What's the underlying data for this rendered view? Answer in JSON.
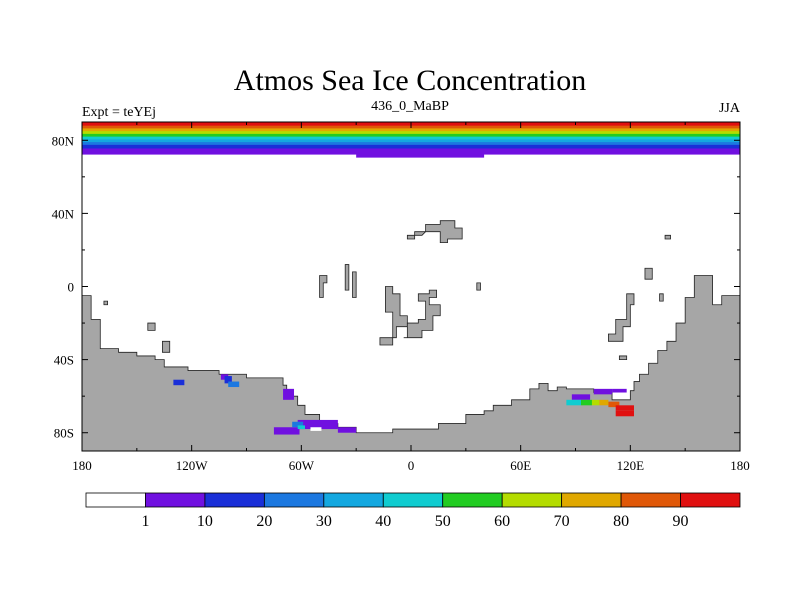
{
  "chart_data": {
    "type": "heatmap",
    "title": "Atmos Sea Ice Concentration",
    "subtitle": "436_0_MaBP",
    "left_label": "Expt = teYEj",
    "right_label": "JJA",
    "projection": "cylindrical equidistant",
    "xlim": [
      -180,
      180
    ],
    "ylim": [
      -90,
      90
    ],
    "x_ticks": [
      {
        "value": -180,
        "label": "180"
      },
      {
        "value": -120,
        "label": "120W"
      },
      {
        "value": -60,
        "label": "60W"
      },
      {
        "value": 0,
        "label": "0"
      },
      {
        "value": 60,
        "label": "60E"
      },
      {
        "value": 120,
        "label": "120E"
      },
      {
        "value": 180,
        "label": "180"
      }
    ],
    "y_ticks": [
      {
        "value": 80,
        "label": "80N"
      },
      {
        "value": 40,
        "label": "40N"
      },
      {
        "value": 0,
        "label": "0"
      },
      {
        "value": -40,
        "label": "40S"
      },
      {
        "value": -80,
        "label": "80S"
      }
    ],
    "colorbar": {
      "levels": [
        1,
        10,
        20,
        30,
        40,
        50,
        60,
        70,
        80,
        90
      ],
      "level_labels": [
        "1",
        "10",
        "20",
        "30",
        "40",
        "50",
        "60",
        "70",
        "80",
        "90"
      ],
      "colors": [
        "#ffffff",
        "#7010e0",
        "#1a2fd8",
        "#1c78e0",
        "#14a8e0",
        "#10ccd0",
        "#22cc22",
        "#b4dc00",
        "#e0a800",
        "#e05808",
        "#e01010"
      ]
    },
    "land_color": "#a6a6a6",
    "arctic_bands": [
      {
        "lat_top": 90,
        "lat_bottom": 88,
        "color": "#e01010"
      },
      {
        "lat_top": 88,
        "lat_bottom": 86.5,
        "color": "#e05808"
      },
      {
        "lat_top": 86.5,
        "lat_bottom": 85,
        "color": "#e0a800"
      },
      {
        "lat_top": 85,
        "lat_bottom": 83.5,
        "color": "#b4dc00"
      },
      {
        "lat_top": 83.5,
        "lat_bottom": 82,
        "color": "#22cc22"
      },
      {
        "lat_top": 82,
        "lat_bottom": 80.5,
        "color": "#10ccd0"
      },
      {
        "lat_top": 80.5,
        "lat_bottom": 79,
        "color": "#14a8e0"
      },
      {
        "lat_top": 79,
        "lat_bottom": 77.5,
        "color": "#1c78e0"
      },
      {
        "lat_top": 77.5,
        "lat_bottom": 75.5,
        "color": "#1a2fd8"
      },
      {
        "lat_top": 75.5,
        "lat_bottom": 72.5,
        "color": "#7010e0"
      }
    ],
    "land_polygons": [
      {
        "name": "antarctica-and-south-america",
        "points": [
          [
            -180,
            -90
          ],
          [
            180,
            -90
          ],
          [
            180,
            -5
          ],
          [
            170,
            -5
          ],
          [
            170,
            -10
          ],
          [
            165,
            -10
          ],
          [
            165,
            6
          ],
          [
            155,
            6
          ],
          [
            155,
            -6
          ],
          [
            150,
            -6
          ],
          [
            150,
            -20
          ],
          [
            145,
            -20
          ],
          [
            145,
            -30
          ],
          [
            140,
            -30
          ],
          [
            140,
            -35
          ],
          [
            135,
            -35
          ],
          [
            135,
            -42
          ],
          [
            130,
            -42
          ],
          [
            130,
            -48
          ],
          [
            125,
            -48
          ],
          [
            125,
            -52
          ],
          [
            122,
            -52
          ],
          [
            122,
            -57
          ],
          [
            120,
            -57
          ],
          [
            120,
            -62
          ],
          [
            110,
            -62
          ],
          [
            110,
            -58
          ],
          [
            100,
            -58
          ],
          [
            100,
            -56
          ],
          [
            85,
            -56
          ],
          [
            85,
            -55
          ],
          [
            80,
            -55
          ],
          [
            80,
            -57
          ],
          [
            75,
            -57
          ],
          [
            75,
            -53
          ],
          [
            70,
            -53
          ],
          [
            70,
            -56
          ],
          [
            65,
            -56
          ],
          [
            65,
            -62
          ],
          [
            55,
            -62
          ],
          [
            55,
            -65
          ],
          [
            45,
            -65
          ],
          [
            45,
            -68
          ],
          [
            40,
            -68
          ],
          [
            40,
            -70
          ],
          [
            30,
            -70
          ],
          [
            30,
            -75
          ],
          [
            15,
            -75
          ],
          [
            15,
            -78
          ],
          [
            -10,
            -78
          ],
          [
            -10,
            -80
          ],
          [
            -30,
            -80
          ],
          [
            -30,
            -77
          ],
          [
            -40,
            -77
          ],
          [
            -40,
            -75
          ],
          [
            -50,
            -75
          ],
          [
            -50,
            -70
          ],
          [
            -58,
            -70
          ],
          [
            -58,
            -65
          ],
          [
            -62,
            -65
          ],
          [
            -62,
            -60
          ],
          [
            -68,
            -60
          ],
          [
            -68,
            -54
          ],
          [
            -70,
            -54
          ],
          [
            -70,
            -50
          ],
          [
            -90,
            -50
          ],
          [
            -90,
            -48
          ],
          [
            -105,
            -48
          ],
          [
            -105,
            -46
          ],
          [
            -122,
            -46
          ],
          [
            -122,
            -44
          ],
          [
            -135,
            -44
          ],
          [
            -135,
            -40
          ],
          [
            -140,
            -40
          ],
          [
            -140,
            -38
          ],
          [
            -150,
            -38
          ],
          [
            -150,
            -36
          ],
          [
            -160,
            -36
          ],
          [
            -160,
            -34
          ],
          [
            -170,
            -34
          ],
          [
            -170,
            -18
          ],
          [
            -175,
            -18
          ],
          [
            -175,
            -5
          ],
          [
            -180,
            -5
          ]
        ]
      },
      {
        "name": "north-atlantic-island",
        "points": [
          [
            -2,
            26
          ],
          [
            2,
            26
          ],
          [
            2,
            30
          ],
          [
            8,
            30
          ],
          [
            8,
            34
          ],
          [
            16,
            34
          ],
          [
            16,
            36
          ],
          [
            24,
            36
          ],
          [
            24,
            32
          ],
          [
            28,
            32
          ],
          [
            28,
            26
          ],
          [
            20,
            26
          ],
          [
            20,
            24
          ],
          [
            16,
            24
          ],
          [
            16,
            30
          ],
          [
            8,
            30
          ],
          [
            6,
            28
          ],
          [
            -2,
            28
          ]
        ]
      },
      {
        "name": "tropical-island-c",
        "points": [
          [
            -17,
            -32
          ],
          [
            -10,
            -32
          ],
          [
            -10,
            -14
          ],
          [
            -14,
            -14
          ],
          [
            -14,
            0
          ],
          [
            -10,
            0
          ],
          [
            -10,
            -4
          ],
          [
            -6,
            -4
          ],
          [
            -6,
            -16
          ],
          [
            -2,
            -16
          ],
          [
            -2,
            -22
          ],
          [
            -8,
            -22
          ],
          [
            -8,
            -28
          ],
          [
            -17,
            -28
          ]
        ]
      },
      {
        "name": "tropical-island-s",
        "points": [
          [
            -4,
            -28
          ],
          [
            -2,
            -28
          ],
          [
            -2,
            -20
          ],
          [
            4,
            -20
          ],
          [
            4,
            -18
          ],
          [
            8,
            -18
          ],
          [
            8,
            -8
          ],
          [
            4,
            -8
          ],
          [
            4,
            -4
          ],
          [
            10,
            -4
          ],
          [
            10,
            -2
          ],
          [
            14,
            -2
          ],
          [
            14,
            -6
          ],
          [
            10,
            -6
          ],
          [
            10,
            -10
          ],
          [
            16,
            -10
          ],
          [
            16,
            -16
          ],
          [
            12,
            -16
          ],
          [
            12,
            -24
          ],
          [
            6,
            -24
          ],
          [
            6,
            -28
          ]
        ]
      },
      {
        "name": "small-tropical-island",
        "points": [
          [
            -50,
            6
          ],
          [
            -46,
            6
          ],
          [
            -46,
            2
          ],
          [
            -48,
            2
          ],
          [
            -48,
            -6
          ],
          [
            -50,
            -6
          ]
        ]
      },
      {
        "name": "small-island-2",
        "points": [
          [
            -36,
            12
          ],
          [
            -34,
            12
          ],
          [
            -34,
            -2
          ],
          [
            -36,
            -2
          ]
        ]
      },
      {
        "name": "small-island-3",
        "points": [
          [
            -32,
            8
          ],
          [
            -30,
            8
          ],
          [
            -30,
            -6
          ],
          [
            -32,
            -6
          ]
        ]
      },
      {
        "name": "small-island-4",
        "points": [
          [
            36,
            2
          ],
          [
            38,
            2
          ],
          [
            38,
            -2
          ],
          [
            36,
            -2
          ]
        ]
      },
      {
        "name": "small-island-5",
        "points": [
          [
            -168,
            -8
          ],
          [
            -166,
            -8
          ],
          [
            -166,
            -10
          ],
          [
            -168,
            -10
          ]
        ]
      },
      {
        "name": "small-island-6",
        "points": [
          [
            -144,
            -20
          ],
          [
            -140,
            -20
          ],
          [
            -140,
            -24
          ],
          [
            -144,
            -24
          ]
        ]
      },
      {
        "name": "small-island-7",
        "points": [
          [
            -136,
            -30
          ],
          [
            -132,
            -30
          ],
          [
            -132,
            -36
          ],
          [
            -136,
            -36
          ]
        ]
      },
      {
        "name": "pacific-island-chain",
        "points": [
          [
            108,
            -30
          ],
          [
            116,
            -30
          ],
          [
            116,
            -22
          ],
          [
            120,
            -22
          ],
          [
            120,
            -10
          ],
          [
            122,
            -10
          ],
          [
            122,
            -4
          ],
          [
            118,
            -4
          ],
          [
            118,
            -18
          ],
          [
            112,
            -18
          ],
          [
            112,
            -26
          ],
          [
            108,
            -26
          ]
        ]
      },
      {
        "name": "island-near-130e",
        "points": [
          [
            128,
            10
          ],
          [
            132,
            10
          ],
          [
            132,
            4
          ],
          [
            128,
            4
          ]
        ]
      },
      {
        "name": "island-near-136e",
        "points": [
          [
            136,
            -4
          ],
          [
            138,
            -4
          ],
          [
            138,
            -8
          ],
          [
            136,
            -8
          ]
        ]
      },
      {
        "name": "island-near-140e",
        "points": [
          [
            139,
            28
          ],
          [
            142,
            28
          ],
          [
            142,
            26
          ],
          [
            139,
            26
          ]
        ]
      },
      {
        "name": "island-near-116e",
        "points": [
          [
            114,
            -38
          ],
          [
            118,
            -38
          ],
          [
            118,
            -40
          ],
          [
            114,
            -40
          ]
        ]
      }
    ],
    "ice_cells": [
      {
        "lon": -130,
        "lat": -51,
        "w": 6,
        "h": 3,
        "color": "#1a2fd8"
      },
      {
        "lon": -104,
        "lat": -48,
        "w": 4,
        "h": 3,
        "color": "#7010e0"
      },
      {
        "lon": -102,
        "lat": -49,
        "w": 4,
        "h": 4,
        "color": "#1a2fd8"
      },
      {
        "lon": -100,
        "lat": -52,
        "w": 6,
        "h": 3,
        "color": "#1c78e0"
      },
      {
        "lon": -70,
        "lat": -56,
        "w": 6,
        "h": 6,
        "color": "#7010e0"
      },
      {
        "lon": -75,
        "lat": -77,
        "w": 14,
        "h": 4,
        "color": "#7010e0"
      },
      {
        "lon": -62,
        "lat": -73,
        "w": 22,
        "h": 5,
        "color": "#7010e0"
      },
      {
        "lon": -40,
        "lat": -77,
        "w": 10,
        "h": 3,
        "color": "#7010e0"
      },
      {
        "lon": -65,
        "lat": -74,
        "w": 6,
        "h": 3,
        "color": "#1c78e0"
      },
      {
        "lon": -62,
        "lat": -76,
        "w": 4,
        "h": 2,
        "color": "#10ccd0"
      },
      {
        "lon": -55,
        "lat": -77,
        "w": 6,
        "h": 2,
        "color": "#ffffff"
      },
      {
        "lon": 100,
        "lat": -56,
        "w": 10,
        "h": 3,
        "color": "#7010e0"
      },
      {
        "lon": 110,
        "lat": -56,
        "w": 8,
        "h": 2,
        "color": "#7010e0"
      },
      {
        "lon": 88,
        "lat": -59,
        "w": 10,
        "h": 3,
        "color": "#7010e0"
      },
      {
        "lon": 85,
        "lat": -62,
        "w": 8,
        "h": 3,
        "color": "#10ccd0"
      },
      {
        "lon": 93,
        "lat": -62,
        "w": 6,
        "h": 3,
        "color": "#22cc22"
      },
      {
        "lon": 99,
        "lat": -62,
        "w": 4,
        "h": 3,
        "color": "#b4dc00"
      },
      {
        "lon": 103,
        "lat": -62,
        "w": 5,
        "h": 3,
        "color": "#e0a800"
      },
      {
        "lon": 108,
        "lat": -63,
        "w": 6,
        "h": 3,
        "color": "#e05808"
      },
      {
        "lon": 112,
        "lat": -65,
        "w": 10,
        "h": 3,
        "color": "#e01010"
      },
      {
        "lon": 112,
        "lat": -68,
        "w": 10,
        "h": 3,
        "color": "#e01010"
      }
    ]
  }
}
